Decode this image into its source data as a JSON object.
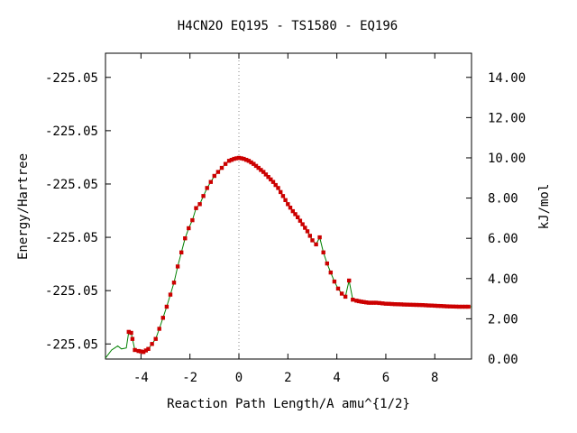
{
  "chart_data": {
    "type": "line",
    "title": "H4CN2O   EQ195 - TS1580 - EQ196",
    "xlabel": "Reaction Path Length/A amu^{1/2}",
    "ylabel_left": "Energy/Hartree",
    "ylabel_right": "kJ/mol",
    "xlim": [
      -5.45,
      9.5
    ],
    "ylim_right": [
      0,
      15.2
    ],
    "x_ticks": [
      -4,
      -2,
      0,
      2,
      4,
      6,
      8
    ],
    "x_tick_labels": [
      "-4",
      "-2",
      "0",
      "2",
      "4",
      "6",
      "8"
    ],
    "left_ticks": [
      0.75,
      3.4,
      6.05,
      8.7,
      11.35,
      14.0
    ],
    "left_tick_labels": [
      "-225.05",
      "-225.05",
      "-225.05",
      "-225.05",
      "-225.05",
      "-225.05"
    ],
    "right_ticks": [
      0,
      2,
      4,
      6,
      8,
      10,
      12,
      14
    ],
    "right_tick_labels": [
      "0.00",
      "2.00",
      "4.00",
      "6.00",
      "8.00",
      "10.00",
      "12.00",
      "14.00"
    ],
    "ts_line_x": 0,
    "series": [
      {
        "name": "",
        "color": "#008000",
        "marker_color": "#cc0000",
        "points": [
          [
            -5.45,
            0.05
          ],
          [
            -5.2,
            0.45
          ],
          [
            -4.95,
            0.65
          ],
          [
            -4.8,
            0.5
          ],
          [
            -4.6,
            0.55
          ],
          [
            -4.5,
            1.35
          ],
          [
            -4.4,
            1.3
          ],
          [
            -4.35,
            1.0
          ],
          [
            -4.25,
            0.45
          ],
          [
            -4.1,
            0.4
          ],
          [
            -3.9,
            0.35
          ],
          [
            -3.7,
            0.5
          ],
          [
            -3.55,
            0.75
          ],
          [
            -3.4,
            1.0
          ],
          [
            -3.25,
            1.5
          ],
          [
            -3.1,
            2.05
          ],
          [
            -2.95,
            2.6
          ],
          [
            -2.8,
            3.2
          ],
          [
            -2.65,
            3.8
          ],
          [
            -2.5,
            4.6
          ],
          [
            -2.35,
            5.3
          ],
          [
            -2.2,
            6.0
          ],
          [
            -2.05,
            6.5
          ],
          [
            -1.9,
            6.9
          ],
          [
            -1.75,
            7.5
          ],
          [
            -1.6,
            7.7
          ],
          [
            -1.45,
            8.1
          ],
          [
            -1.3,
            8.5
          ],
          [
            -1.15,
            8.8
          ],
          [
            -1.0,
            9.1
          ],
          [
            -0.85,
            9.3
          ],
          [
            -0.7,
            9.5
          ],
          [
            -0.55,
            9.7
          ],
          [
            -0.4,
            9.85
          ],
          [
            -0.2,
            9.95
          ],
          [
            0.0,
            10.0
          ],
          [
            0.2,
            9.95
          ],
          [
            0.4,
            9.85
          ],
          [
            0.6,
            9.7
          ],
          [
            0.8,
            9.5
          ],
          [
            1.0,
            9.3
          ],
          [
            1.2,
            9.05
          ],
          [
            1.4,
            8.8
          ],
          [
            1.6,
            8.5
          ],
          [
            1.8,
            8.1
          ],
          [
            2.0,
            7.7
          ],
          [
            2.2,
            7.35
          ],
          [
            2.4,
            7.05
          ],
          [
            2.6,
            6.7
          ],
          [
            2.8,
            6.35
          ],
          [
            3.0,
            5.9
          ],
          [
            3.15,
            5.7
          ],
          [
            3.3,
            6.05
          ],
          [
            3.45,
            5.3
          ],
          [
            3.6,
            4.75
          ],
          [
            3.75,
            4.3
          ],
          [
            3.9,
            3.85
          ],
          [
            4.05,
            3.5
          ],
          [
            4.2,
            3.25
          ],
          [
            4.35,
            3.1
          ],
          [
            4.5,
            3.9
          ],
          [
            4.65,
            2.95
          ],
          [
            4.8,
            2.9
          ],
          [
            5.0,
            2.85
          ],
          [
            5.3,
            2.8
          ],
          [
            5.6,
            2.8
          ],
          [
            6.0,
            2.75
          ],
          [
            6.5,
            2.72
          ],
          [
            7.0,
            2.7
          ],
          [
            7.5,
            2.68
          ],
          [
            8.0,
            2.65
          ],
          [
            8.5,
            2.62
          ],
          [
            9.0,
            2.6
          ],
          [
            9.5,
            2.6
          ]
        ]
      }
    ]
  }
}
